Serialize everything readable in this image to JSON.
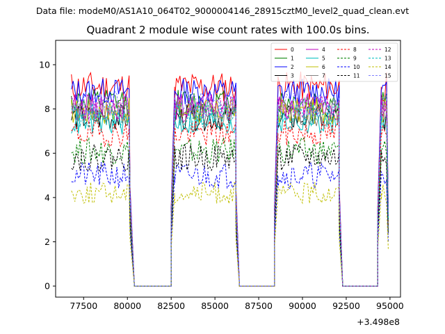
{
  "suptitle": "Data file: modeM0/AS1A10_064T02_9000004146_28915cztM0_level2_quad_clean.evt",
  "chart_data": {
    "type": "line",
    "title": "Quadrant 2 module wise count rates with 100.0s bins.",
    "xlabel": "",
    "ylabel": "",
    "x_offset_label": "+3.498e8",
    "xlim": [
      75900,
      95600
    ],
    "ylim": [
      -0.5,
      11.1
    ],
    "xticks": [
      77500,
      80000,
      82500,
      85000,
      87500,
      90000,
      92500,
      95000
    ],
    "xtick_labels": [
      "77500",
      "80000",
      "82500",
      "85000",
      "87500",
      "90000",
      "92500",
      "95000"
    ],
    "yticks": [
      0,
      2,
      4,
      6,
      8,
      10
    ],
    "ytick_labels": [
      "0",
      "2",
      "4",
      "6",
      "8",
      "10"
    ],
    "segments": [
      {
        "start": 76800,
        "end": 80150,
        "type": "on"
      },
      {
        "start": 80150,
        "end": 80400,
        "type": "fall"
      },
      {
        "start": 80400,
        "end": 82500,
        "type": "zero"
      },
      {
        "start": 82500,
        "end": 82700,
        "type": "rise"
      },
      {
        "start": 82700,
        "end": 86200,
        "type": "on"
      },
      {
        "start": 86200,
        "end": 86400,
        "type": "fall"
      },
      {
        "start": 86400,
        "end": 88400,
        "type": "zero"
      },
      {
        "start": 88400,
        "end": 88600,
        "type": "rise"
      },
      {
        "start": 88600,
        "end": 92100,
        "type": "on"
      },
      {
        "start": 92100,
        "end": 92300,
        "type": "fall"
      },
      {
        "start": 92300,
        "end": 94300,
        "type": "zero"
      },
      {
        "start": 94300,
        "end": 94500,
        "type": "rise"
      },
      {
        "start": 94500,
        "end": 94800,
        "type": "on"
      },
      {
        "start": 94800,
        "end": 94900,
        "type": "end"
      }
    ],
    "series": [
      {
        "name": "0",
        "color": "#ff0000",
        "style": "solid",
        "mean": 9.0,
        "noise": 0.35,
        "seed": 11
      },
      {
        "name": "1",
        "color": "#008000",
        "style": "solid",
        "mean": 8.3,
        "noise": 0.3,
        "seed": 12
      },
      {
        "name": "2",
        "color": "#0000ff",
        "style": "solid",
        "mean": 8.8,
        "noise": 0.3,
        "seed": 13
      },
      {
        "name": "3",
        "color": "#000000",
        "style": "solid",
        "mean": 7.6,
        "noise": 0.3,
        "seed": 14
      },
      {
        "name": "4",
        "color": "#bf00bf",
        "style": "solid",
        "mean": 8.1,
        "noise": 0.3,
        "seed": 15
      },
      {
        "name": "5",
        "color": "#00bfbf",
        "style": "solid",
        "mean": 7.4,
        "noise": 0.3,
        "seed": 16
      },
      {
        "name": "6",
        "color": "#bfbf00",
        "style": "solid",
        "mean": 7.9,
        "noise": 0.3,
        "seed": 17
      },
      {
        "name": "7",
        "color": "#808080",
        "style": "solid",
        "mean": 7.8,
        "noise": 0.3,
        "seed": 18
      },
      {
        "name": "8",
        "color": "#ff0000",
        "style": "dashed",
        "mean": 6.9,
        "noise": 0.3,
        "seed": 19
      },
      {
        "name": "9",
        "color": "#008000",
        "style": "dashed",
        "mean": 6.1,
        "noise": 0.3,
        "seed": 20
      },
      {
        "name": "10",
        "color": "#0000ff",
        "style": "dashed",
        "mean": 5.0,
        "noise": 0.3,
        "seed": 21
      },
      {
        "name": "11",
        "color": "#000000",
        "style": "dashed",
        "mean": 5.8,
        "noise": 0.3,
        "seed": 22
      },
      {
        "name": "12",
        "color": "#bf00bf",
        "style": "dashed",
        "mean": 8.0,
        "noise": 0.3,
        "seed": 23
      },
      {
        "name": "13",
        "color": "#00bfbf",
        "style": "dashed",
        "mean": 7.7,
        "noise": 0.3,
        "seed": 24
      },
      {
        "name": "14",
        "color": "#bfbf00",
        "style": "dashed",
        "mean": 4.2,
        "noise": 0.25,
        "seed": 25
      },
      {
        "name": "15",
        "color": "#8080ff",
        "style": "dashed",
        "mean": 8.2,
        "noise": 0.3,
        "seed": 26
      }
    ],
    "legend_location": "upper right"
  }
}
